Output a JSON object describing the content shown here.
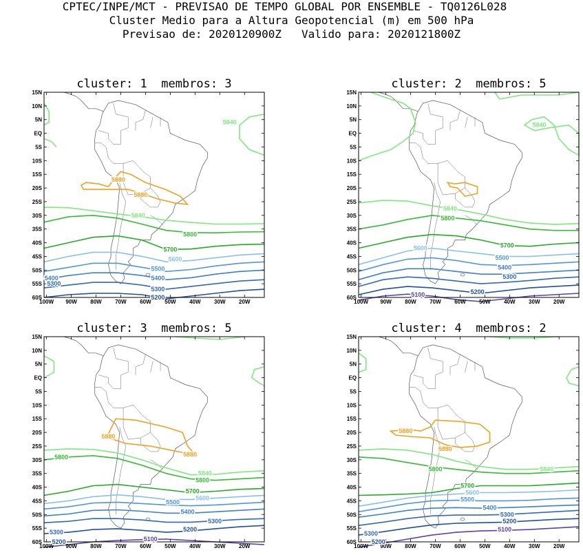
{
  "header": {
    "line1": "CPTEC/INPE/MCT - PREVISAO DE TEMPO GLOBAL POR ENSEMBLE - TQ0126L028",
    "line2": "Cluster Medio para a Altura Geopotencial (m) em 500 hPa",
    "line3": "Previsao de: 2020120900Z   Valido para: 2020121800Z"
  },
  "lat_labels": [
    "15N",
    "10N",
    "5N",
    "EQ",
    "5S",
    "10S",
    "15S",
    "20S",
    "25S",
    "30S",
    "35S",
    "40S",
    "45S",
    "50S",
    "55S",
    "60S"
  ],
  "lon_labels": [
    "100W",
    "90W",
    "80W",
    "70W",
    "60W",
    "50W",
    "40W",
    "30W",
    "20W"
  ],
  "colors": {
    "5100": "#5a3fb0",
    "5200": "#1f4fa0",
    "5300": "#2f67c0",
    "5400": "#3b7fd0",
    "5500": "#4f95dd",
    "5600": "#86bff0",
    "5700": "#22aa22",
    "5800": "#33bb33",
    "5840": "#7ee87e",
    "5880": "#f0a020"
  },
  "panels": [
    {
      "title": "cluster: 1  membros: 3",
      "labels": [
        {
          "text": "5840",
          "lon": -26,
          "lat": 4
        },
        {
          "text": "5880",
          "lon": -71,
          "lat": -17
        },
        {
          "text": "5880",
          "lon": -62,
          "lat": -22.5
        },
        {
          "text": "5840",
          "lon": -63,
          "lat": -30
        },
        {
          "text": "5800",
          "lon": -42,
          "lat": -37
        },
        {
          "text": "5700",
          "lon": -50,
          "lat": -42.5
        },
        {
          "text": "5600",
          "lon": -48,
          "lat": -46
        },
        {
          "text": "5500",
          "lon": -55,
          "lat": -49.5
        },
        {
          "text": "5400",
          "lon": -55,
          "lat": -53
        },
        {
          "text": "5300",
          "lon": -55,
          "lat": -57
        },
        {
          "text": "5200",
          "lon": -55,
          "lat": -60
        },
        {
          "text": "5400",
          "lon": -98,
          "lat": -53
        },
        {
          "text": "5300",
          "lon": -97,
          "lat": -55
        }
      ]
    },
    {
      "title": "cluster: 2  membros: 5",
      "labels": [
        {
          "text": "5840",
          "lon": -28,
          "lat": 3
        },
        {
          "text": "5840",
          "lon": -64,
          "lat": -27.5
        },
        {
          "text": "5800",
          "lon": -65,
          "lat": -31
        },
        {
          "text": "5700",
          "lon": -41,
          "lat": -41
        },
        {
          "text": "5600",
          "lon": -76,
          "lat": -42
        },
        {
          "text": "5500",
          "lon": -43,
          "lat": -45.5
        },
        {
          "text": "5400",
          "lon": -42,
          "lat": -49
        },
        {
          "text": "5300",
          "lon": -40,
          "lat": -52.5
        },
        {
          "text": "5200",
          "lon": -53,
          "lat": -58
        },
        {
          "text": "5100",
          "lon": -77,
          "lat": -59
        }
      ]
    },
    {
      "title": "cluster: 3  membros: 5",
      "labels": [
        {
          "text": "5880",
          "lon": -75,
          "lat": -21.5
        },
        {
          "text": "5880",
          "lon": -42,
          "lat": -28
        },
        {
          "text": "5800",
          "lon": -94,
          "lat": -29
        },
        {
          "text": "5840",
          "lon": -36,
          "lat": -35
        },
        {
          "text": "5800",
          "lon": -37,
          "lat": -37.5
        },
        {
          "text": "5700",
          "lon": -41,
          "lat": -41.5
        },
        {
          "text": "5600",
          "lon": -37,
          "lat": -44
        },
        {
          "text": "5500",
          "lon": -49,
          "lat": -45.5
        },
        {
          "text": "5400",
          "lon": -43,
          "lat": -49
        },
        {
          "text": "5300",
          "lon": -32,
          "lat": -52.5
        },
        {
          "text": "5200",
          "lon": -42,
          "lat": -55.5
        },
        {
          "text": "5300",
          "lon": -96,
          "lat": -56.5
        },
        {
          "text": "5100",
          "lon": -58,
          "lat": -59
        },
        {
          "text": "5200",
          "lon": -95,
          "lat": -60
        }
      ]
    },
    {
      "title": "cluster: 4  membros: 2",
      "labels": [
        {
          "text": "5880",
          "lon": -82,
          "lat": -19.5
        },
        {
          "text": "5880",
          "lon": -66,
          "lat": -26
        },
        {
          "text": "5840",
          "lon": -25,
          "lat": -33.5
        },
        {
          "text": "5800",
          "lon": -70,
          "lat": -33.5
        },
        {
          "text": "5700",
          "lon": -57,
          "lat": -39.5
        },
        {
          "text": "5600",
          "lon": -55,
          "lat": -42
        },
        {
          "text": "5500",
          "lon": -57,
          "lat": -44.5
        },
        {
          "text": "5400",
          "lon": -48,
          "lat": -47.5
        },
        {
          "text": "5300",
          "lon": -41,
          "lat": -50
        },
        {
          "text": "5200",
          "lon": -40,
          "lat": -52.5
        },
        {
          "text": "5100",
          "lon": -42,
          "lat": -55.5
        },
        {
          "text": "5300",
          "lon": -96,
          "lat": -57
        },
        {
          "text": "5200",
          "lon": -93,
          "lat": -60
        }
      ]
    }
  ]
}
